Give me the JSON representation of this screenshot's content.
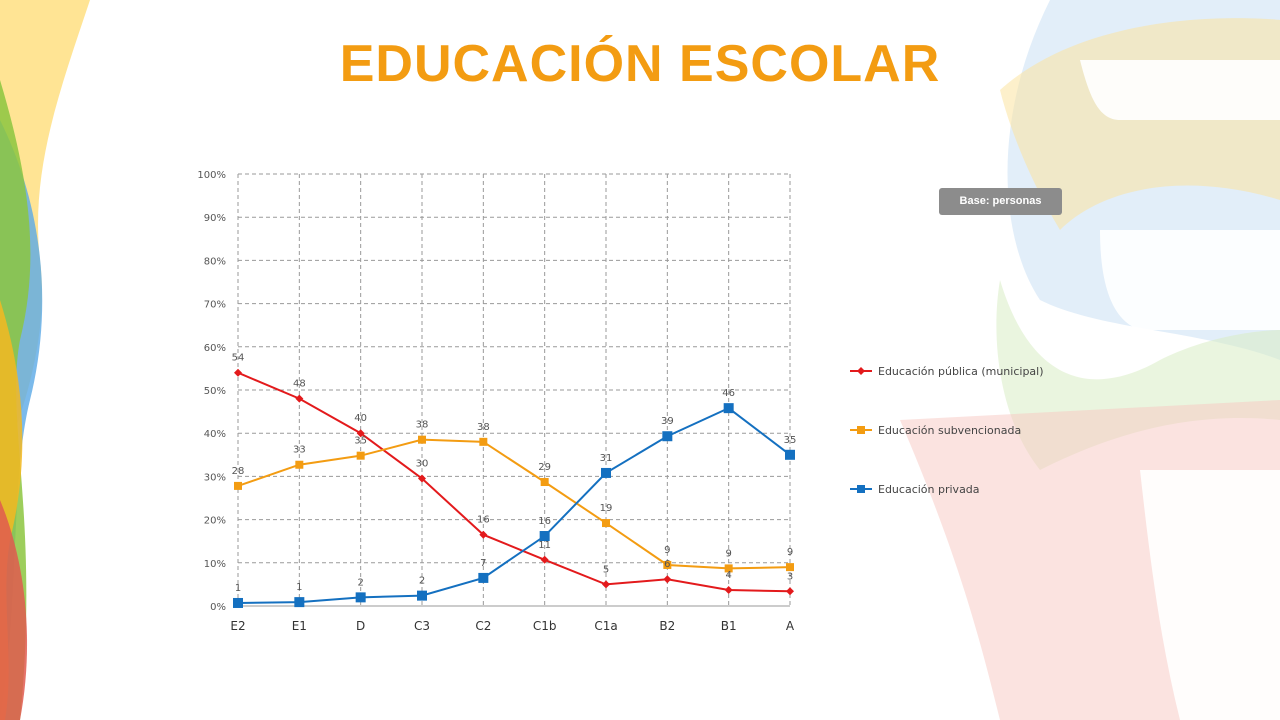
{
  "title": "EDUCACIÓN ESCOLAR",
  "badge": "Base: personas",
  "colors": {
    "title": "#f39c12",
    "publica": "#e31a1c",
    "subvencionada": "#f39c12",
    "privada": "#1470c0"
  },
  "chart_data": {
    "type": "line",
    "categories": [
      "E2",
      "E1",
      "D",
      "C3",
      "C2",
      "C1b",
      "C1a",
      "B2",
      "B1",
      "A"
    ],
    "ylim": [
      0,
      100
    ],
    "yticks": [
      "0%",
      "10%",
      "20%",
      "30%",
      "40%",
      "50%",
      "60%",
      "70%",
      "80%",
      "90%",
      "100%"
    ],
    "grid": true,
    "legend": "right",
    "series": [
      {
        "name": "Educación pública (municipal)",
        "marker": "diamond",
        "values": [
          54,
          48,
          40,
          29.5,
          16.5,
          10.7,
          5,
          6.2,
          3.7,
          3.4
        ],
        "labels": [
          "54",
          "48",
          "40",
          "30",
          "16",
          "11",
          "5",
          "6",
          "4",
          "3"
        ]
      },
      {
        "name": "Educación subvencionada",
        "marker": "square",
        "values": [
          27.8,
          32.7,
          34.8,
          38.5,
          38,
          28.7,
          19.2,
          9.5,
          8.7,
          9
        ],
        "labels": [
          "28",
          "33",
          "35",
          "38",
          "38",
          "29",
          "19",
          "9",
          "9",
          "9"
        ]
      },
      {
        "name": "Educación privada",
        "marker": "bigsquare",
        "values": [
          0.7,
          0.9,
          2,
          2.4,
          6.5,
          16.2,
          30.8,
          39.3,
          45.8,
          35
        ],
        "labels": [
          "1",
          "1",
          "2",
          "2",
          "7",
          "16",
          "31",
          "39",
          "46",
          "35"
        ]
      }
    ]
  }
}
